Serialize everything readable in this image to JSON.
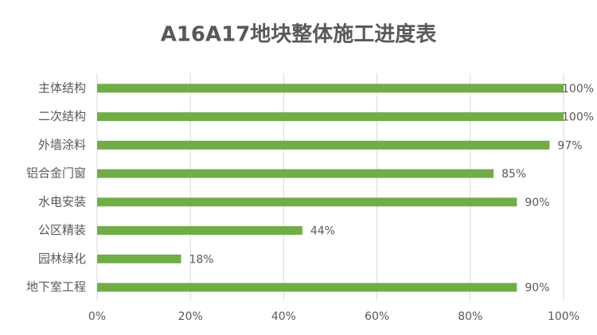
{
  "chart_data": {
    "type": "bar",
    "orientation": "horizontal",
    "title": "A16A17地块整体施工进度表",
    "categories": [
      "主体结构",
      "二次结构",
      "外墙涂料",
      "铝合金门窗",
      "水电安装",
      "公区精装",
      "园林绿化",
      "地下室工程"
    ],
    "values": [
      100,
      100,
      97,
      85,
      90,
      44,
      18,
      90
    ],
    "value_labels": [
      "100%",
      "100%",
      "97%",
      "85%",
      "90%",
      "44%",
      "18%",
      "90%"
    ],
    "color": "#70ad47",
    "xlim": [
      0,
      100
    ],
    "xticks": [
      {
        "value": 0,
        "label": "0%"
      },
      {
        "value": 20,
        "label": "20%"
      },
      {
        "value": 40,
        "label": "40%"
      },
      {
        "value": 60,
        "label": "60%"
      },
      {
        "value": 80,
        "label": "80%"
      },
      {
        "value": 100,
        "label": "100%"
      }
    ],
    "grid": true
  }
}
